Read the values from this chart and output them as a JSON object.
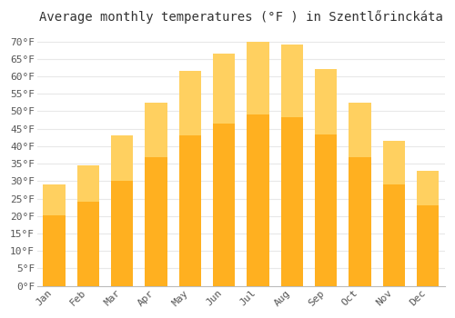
{
  "title": "Average monthly temperatures (°F ) in Szentlőrinckáta",
  "months": [
    "Jan",
    "Feb",
    "Mar",
    "Apr",
    "May",
    "Jun",
    "Jul",
    "Aug",
    "Sep",
    "Oct",
    "Nov",
    "Dec"
  ],
  "values": [
    29,
    34.5,
    43,
    52.5,
    61.5,
    66.5,
    70,
    69,
    62,
    52.5,
    41.5,
    33
  ],
  "bar_color_top": "#FFB733",
  "bar_color_bottom": "#FFA000",
  "ylim": [
    0,
    73
  ],
  "yticks": [
    0,
    5,
    10,
    15,
    20,
    25,
    30,
    35,
    40,
    45,
    50,
    55,
    60,
    65,
    70
  ],
  "title_fontsize": 10,
  "tick_fontsize": 8,
  "background_color": "#ffffff",
  "grid_color": "#e8e8e8",
  "bar_width": 0.65
}
